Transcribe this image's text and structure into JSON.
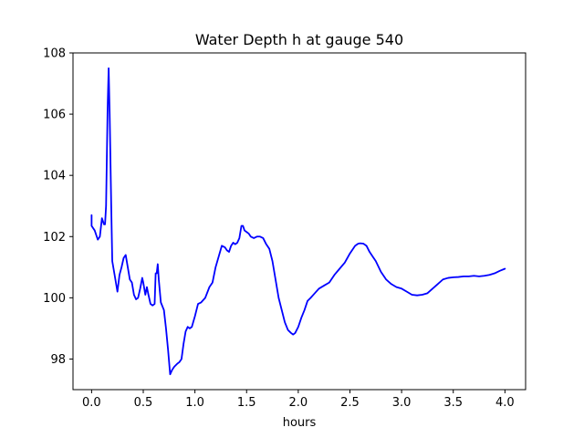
{
  "chart_data": {
    "type": "line",
    "title": "Water Depth h at gauge 540",
    "xlabel": "hours",
    "ylabel": "",
    "xlim": [
      -0.18,
      4.2
    ],
    "ylim": [
      97.0,
      108.0
    ],
    "xticks": [
      0.0,
      0.5,
      1.0,
      1.5,
      2.0,
      2.5,
      3.0,
      3.5,
      4.0
    ],
    "xtick_labels": [
      "0.0",
      "0.5",
      "1.0",
      "1.5",
      "2.0",
      "2.5",
      "3.0",
      "3.5",
      "4.0"
    ],
    "yticks": [
      98,
      100,
      102,
      104,
      106,
      108
    ],
    "ytick_labels": [
      "98",
      "100",
      "102",
      "104",
      "106",
      "108"
    ],
    "grid": false,
    "series": [
      {
        "color": "#0000ff",
        "x": [
          0.0,
          0.0,
          0.03,
          0.06,
          0.08,
          0.1,
          0.12,
          0.13,
          0.14,
          0.155,
          0.165,
          0.175,
          0.19,
          0.2,
          0.22,
          0.25,
          0.27,
          0.29,
          0.31,
          0.33,
          0.35,
          0.37,
          0.39,
          0.41,
          0.43,
          0.45,
          0.47,
          0.49,
          0.5,
          0.52,
          0.535,
          0.55,
          0.57,
          0.59,
          0.61,
          0.62,
          0.63,
          0.64,
          0.65,
          0.67,
          0.7,
          0.72,
          0.74,
          0.76,
          0.78,
          0.8,
          0.83,
          0.85,
          0.87,
          0.89,
          0.91,
          0.93,
          0.95,
          0.97,
          1.0,
          1.03,
          1.06,
          1.1,
          1.14,
          1.17,
          1.2,
          1.23,
          1.26,
          1.29,
          1.31,
          1.33,
          1.35,
          1.37,
          1.39,
          1.41,
          1.43,
          1.45,
          1.465,
          1.48,
          1.5,
          1.52,
          1.54,
          1.57,
          1.6,
          1.63,
          1.66,
          1.69,
          1.72,
          1.75,
          1.78,
          1.81,
          1.84,
          1.87,
          1.9,
          1.93,
          1.95,
          1.97,
          2.0,
          2.03,
          2.06,
          2.09,
          2.12,
          2.16,
          2.2,
          2.25,
          2.3,
          2.35,
          2.4,
          2.45,
          2.5,
          2.55,
          2.58,
          2.6,
          2.63,
          2.66,
          2.69,
          2.72,
          2.75,
          2.8,
          2.85,
          2.9,
          2.95,
          3.0,
          3.05,
          3.1,
          3.15,
          3.2,
          3.25,
          3.3,
          3.35,
          3.4,
          3.45,
          3.5,
          3.55,
          3.6,
          3.65,
          3.7,
          3.75,
          3.8,
          3.85,
          3.9,
          3.95,
          4.0
        ],
        "y": [
          102.7,
          102.35,
          102.2,
          101.9,
          102.0,
          102.6,
          102.4,
          102.4,
          103.0,
          106.2,
          107.5,
          106.0,
          103.0,
          101.2,
          100.8,
          100.2,
          100.75,
          101.0,
          101.3,
          101.4,
          101.0,
          100.6,
          100.5,
          100.1,
          99.95,
          100.0,
          100.3,
          100.65,
          100.5,
          100.1,
          100.35,
          100.1,
          99.8,
          99.75,
          99.8,
          100.8,
          100.8,
          101.1,
          100.6,
          99.85,
          99.6,
          99.0,
          98.3,
          97.5,
          97.65,
          97.75,
          97.85,
          97.9,
          98.0,
          98.5,
          98.9,
          99.05,
          99.0,
          99.05,
          99.4,
          99.8,
          99.85,
          100.0,
          100.35,
          100.5,
          101.0,
          101.35,
          101.7,
          101.65,
          101.55,
          101.5,
          101.7,
          101.8,
          101.75,
          101.8,
          101.95,
          102.35,
          102.35,
          102.2,
          102.15,
          102.1,
          102.0,
          101.95,
          102.0,
          102.0,
          101.95,
          101.75,
          101.6,
          101.2,
          100.6,
          100.0,
          99.6,
          99.2,
          98.95,
          98.85,
          98.8,
          98.85,
          99.05,
          99.35,
          99.6,
          99.9,
          100.0,
          100.15,
          100.3,
          100.4,
          100.5,
          100.75,
          100.95,
          101.15,
          101.45,
          101.7,
          101.77,
          101.78,
          101.77,
          101.7,
          101.5,
          101.35,
          101.2,
          100.85,
          100.6,
          100.45,
          100.35,
          100.3,
          100.2,
          100.1,
          100.08,
          100.1,
          100.15,
          100.3,
          100.45,
          100.6,
          100.65,
          100.67,
          100.68,
          100.7,
          100.7,
          100.72,
          100.7,
          100.72,
          100.75,
          100.8,
          100.88,
          100.95
        ]
      }
    ]
  }
}
